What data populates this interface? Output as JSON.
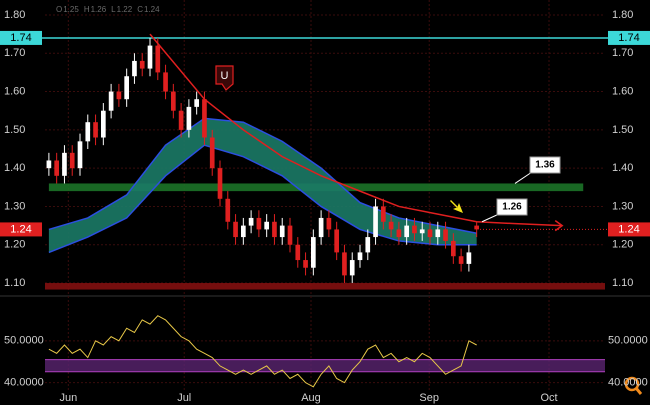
{
  "chart_data": [
    {
      "type": "candlestick",
      "header_labels": [
        "O",
        "H",
        "L",
        "C"
      ],
      "open": [
        1.4,
        1.42,
        1.38,
        1.44,
        1.4,
        1.47,
        1.52,
        1.48,
        1.55,
        1.6,
        1.58,
        1.64,
        1.68,
        1.66,
        1.72,
        1.65,
        1.6,
        1.55,
        1.5,
        1.56,
        1.58,
        1.48,
        1.4,
        1.32,
        1.26,
        1.22,
        1.25,
        1.27,
        1.24,
        1.26,
        1.22,
        1.25,
        1.2,
        1.16,
        1.14,
        1.22,
        1.27,
        1.24,
        1.18,
        1.12,
        1.16,
        1.18,
        1.22,
        1.3,
        1.26,
        1.24,
        1.22,
        1.25,
        1.23,
        1.24,
        1.22,
        1.24,
        1.21,
        1.17,
        1.15,
        1.25
      ],
      "high": [
        1.44,
        1.44,
        1.46,
        1.46,
        1.49,
        1.54,
        1.54,
        1.57,
        1.62,
        1.62,
        1.66,
        1.7,
        1.7,
        1.74,
        1.74,
        1.67,
        1.62,
        1.57,
        1.58,
        1.6,
        1.6,
        1.5,
        1.42,
        1.34,
        1.28,
        1.27,
        1.29,
        1.29,
        1.28,
        1.28,
        1.27,
        1.27,
        1.22,
        1.18,
        1.24,
        1.29,
        1.29,
        1.26,
        1.2,
        1.18,
        1.2,
        1.24,
        1.32,
        1.32,
        1.28,
        1.26,
        1.27,
        1.27,
        1.26,
        1.26,
        1.26,
        1.26,
        1.23,
        1.19,
        1.2,
        1.26
      ],
      "low": [
        1.38,
        1.36,
        1.36,
        1.38,
        1.38,
        1.45,
        1.46,
        1.46,
        1.53,
        1.56,
        1.56,
        1.62,
        1.64,
        1.64,
        1.63,
        1.58,
        1.53,
        1.48,
        1.48,
        1.54,
        1.46,
        1.38,
        1.3,
        1.24,
        1.2,
        1.2,
        1.23,
        1.22,
        1.22,
        1.2,
        1.2,
        1.18,
        1.14,
        1.12,
        1.12,
        1.2,
        1.22,
        1.16,
        1.1,
        1.1,
        1.14,
        1.16,
        1.2,
        1.24,
        1.22,
        1.2,
        1.2,
        1.21,
        1.21,
        1.2,
        1.2,
        1.19,
        1.15,
        1.13,
        1.13,
        1.22
      ],
      "close": [
        1.42,
        1.38,
        1.44,
        1.4,
        1.47,
        1.52,
        1.48,
        1.55,
        1.6,
        1.58,
        1.64,
        1.68,
        1.66,
        1.72,
        1.65,
        1.6,
        1.55,
        1.5,
        1.56,
        1.58,
        1.48,
        1.4,
        1.32,
        1.26,
        1.22,
        1.25,
        1.27,
        1.24,
        1.26,
        1.22,
        1.25,
        1.2,
        1.16,
        1.14,
        1.22,
        1.27,
        1.24,
        1.18,
        1.12,
        1.16,
        1.18,
        1.22,
        1.3,
        1.26,
        1.24,
        1.22,
        1.25,
        1.23,
        1.24,
        1.22,
        1.24,
        1.21,
        1.17,
        1.15,
        1.18,
        1.24
      ],
      "up_color": "#ffffff",
      "down_color": "#e02020",
      "xlim": [
        -0.5,
        71.5
      ],
      "xticks": [
        {
          "value": 2.5,
          "label": "Jun"
        },
        {
          "value": 17.4,
          "label": "Jul"
        },
        {
          "value": 33.7,
          "label": "Aug"
        },
        {
          "value": 48.9,
          "label": "Sep"
        },
        {
          "value": 64.3,
          "label": "Oct"
        }
      ],
      "ylim": [
        1.08,
        1.82
      ],
      "yticks": [
        {
          "value": 1.1,
          "label": "1.10"
        },
        {
          "value": 1.2,
          "label": "1.20"
        },
        {
          "value": 1.3,
          "label": "1.30"
        },
        {
          "value": 1.4,
          "label": "1.40"
        },
        {
          "value": 1.5,
          "label": "1.50"
        },
        {
          "value": 1.6,
          "label": "1.60"
        },
        {
          "value": 1.7,
          "label": "1.70"
        },
        {
          "value": 1.8,
          "label": "1.80"
        }
      ],
      "cloud": {
        "x": [
          0,
          5,
          10,
          15,
          20,
          25,
          30,
          35,
          40,
          45,
          50,
          55
        ],
        "upper": [
          1.24,
          1.27,
          1.33,
          1.46,
          1.53,
          1.52,
          1.47,
          1.4,
          1.31,
          1.27,
          1.25,
          1.23
        ],
        "lower": [
          1.18,
          1.22,
          1.27,
          1.38,
          1.46,
          1.43,
          1.38,
          1.3,
          1.24,
          1.21,
          1.2,
          1.2
        ],
        "fill": "#1b7a66",
        "edge": "#2b4fe0"
      },
      "trend": {
        "x": [
          13,
          20,
          25,
          30,
          35,
          40,
          45,
          50,
          55,
          60,
          66
        ],
        "values": [
          1.75,
          1.58,
          1.5,
          1.43,
          1.38,
          1.34,
          1.3,
          1.28,
          1.26,
          1.255,
          1.25
        ],
        "color": "#e01f1f"
      },
      "level_line": {
        "value": 1.74,
        "label": "1.74",
        "color": "#3cd8d8"
      },
      "price_line": {
        "value": 1.24,
        "label": "1.24",
        "color": "#e02020"
      },
      "zones": [
        {
          "range": [
            1.34,
            1.36
          ],
          "xrange": [
            0,
            68.7
          ],
          "color": "#1d7a2a"
        },
        {
          "range": [
            1.083,
            1.1
          ],
          "xrange": [
            -0.5,
            71.5
          ],
          "color": "#8a1010"
        }
      ],
      "marker": "U",
      "callouts": [
        {
          "value": 1.36,
          "label": "1.36"
        },
        {
          "value": 1.26,
          "label": "1.26"
        }
      ]
    },
    {
      "type": "line",
      "values": [
        48,
        47,
        49,
        47,
        48,
        46,
        50,
        49,
        51,
        50,
        53,
        52,
        55,
        54,
        56,
        55,
        53,
        51,
        50,
        48,
        47,
        46,
        44,
        43,
        42,
        43,
        42,
        43,
        44,
        42,
        43,
        41,
        42,
        40,
        39,
        42,
        44,
        41,
        40,
        43,
        45,
        48,
        49,
        46,
        47,
        45,
        46,
        45,
        47,
        46,
        44,
        42,
        43,
        44,
        50,
        49
      ],
      "color": "#e8c848",
      "ylim": [
        38,
        60
      ],
      "yticks": [
        {
          "value": 40,
          "label": "40.0000"
        },
        {
          "value": 50,
          "label": "50.0000"
        }
      ],
      "zone": {
        "range": [
          42.6,
          45.5
        ],
        "color": "#5a2470"
      }
    }
  ]
}
